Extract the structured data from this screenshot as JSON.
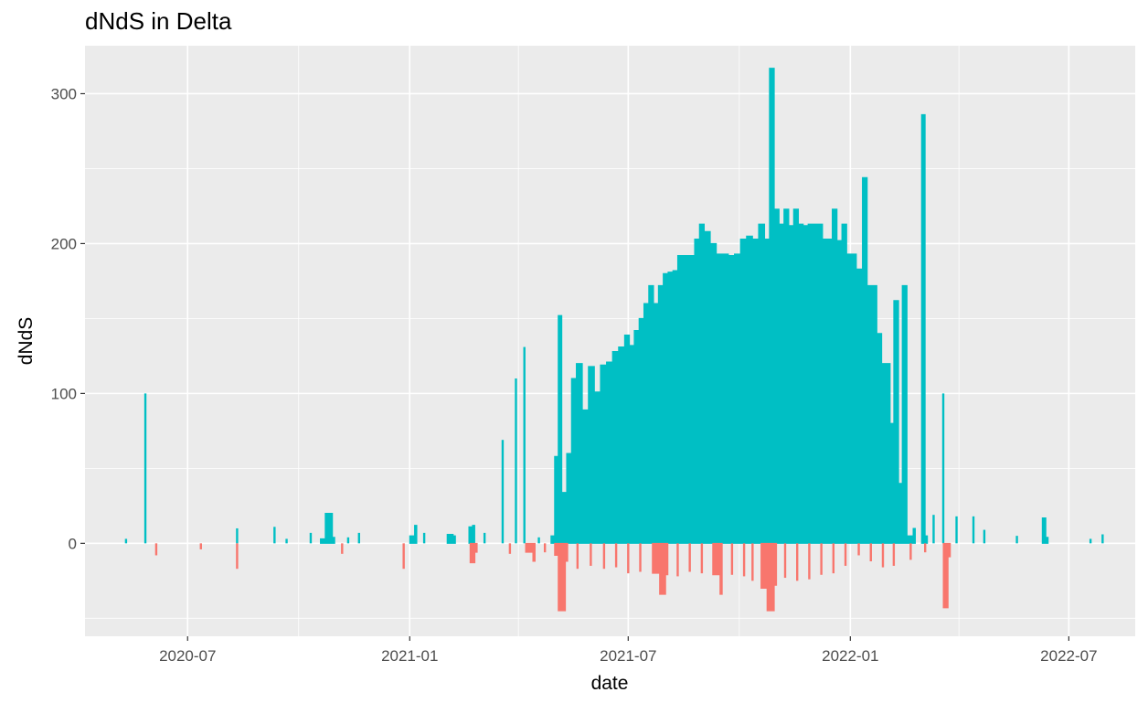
{
  "chart_data": {
    "type": "bar",
    "title": "dNdS in Delta",
    "xlabel": "date",
    "ylabel": "dNdS",
    "x_range": [
      "2020-04-07",
      "2022-08-25"
    ],
    "ylim": [
      -62,
      332
    ],
    "x_ticks": [
      "2020-07-01",
      "2021-01-01",
      "2021-07-01",
      "2022-01-01",
      "2022-07-01"
    ],
    "x_tick_labels": [
      "2020-07",
      "2021-01",
      "2021-07",
      "2022-01",
      "2022-07"
    ],
    "y_ticks": [
      0,
      100,
      200,
      300
    ],
    "y_tick_labels": [
      "0",
      "100",
      "200",
      "300"
    ],
    "grid": true,
    "legend": "none",
    "colors": {
      "positive": "#00BFC4",
      "negative": "#F8766D",
      "panel": "#EBEBEB",
      "grid": "#FFFFFF"
    },
    "series": [
      {
        "sign": "positive",
        "points": [
          [
            "2020-05-11",
            3
          ],
          [
            "2020-05-27",
            100
          ],
          [
            "2020-08-11",
            10
          ],
          [
            "2020-09-11",
            11
          ],
          [
            "2020-09-21",
            3
          ],
          [
            "2020-10-11",
            7
          ],
          [
            "2020-10-19",
            3
          ],
          [
            "2020-10-23",
            20
          ],
          [
            "2020-10-29",
            4
          ],
          [
            "2020-11-11",
            4
          ],
          [
            "2020-11-20",
            7
          ],
          [
            "2021-01-01",
            5
          ],
          [
            "2021-01-05",
            12
          ],
          [
            "2021-01-13",
            7
          ],
          [
            "2021-02-01",
            6
          ],
          [
            "2021-02-06",
            5
          ],
          [
            "2021-02-19",
            11
          ],
          [
            "2021-02-22",
            12
          ],
          [
            "2021-03-04",
            7
          ],
          [
            "2021-03-19",
            69
          ],
          [
            "2021-03-30",
            110
          ],
          [
            "2021-04-06",
            131
          ],
          [
            "2021-04-18",
            4
          ],
          [
            "2021-04-28",
            5
          ],
          [
            "2021-05-01",
            58
          ],
          [
            "2021-05-04",
            152
          ],
          [
            "2021-05-07",
            34
          ],
          [
            "2021-05-11",
            60
          ],
          [
            "2021-05-15",
            110
          ],
          [
            "2021-05-19",
            120
          ],
          [
            "2021-05-24",
            89
          ],
          [
            "2021-05-29",
            118
          ],
          [
            "2021-06-03",
            101
          ],
          [
            "2021-06-08",
            119
          ],
          [
            "2021-06-13",
            121
          ],
          [
            "2021-06-18",
            128
          ],
          [
            "2021-06-23",
            131
          ],
          [
            "2021-06-28",
            139
          ],
          [
            "2021-07-02",
            132
          ],
          [
            "2021-07-06",
            142
          ],
          [
            "2021-07-10",
            150
          ],
          [
            "2021-07-14",
            160
          ],
          [
            "2021-07-18",
            172
          ],
          [
            "2021-07-22",
            160
          ],
          [
            "2021-07-26",
            172
          ],
          [
            "2021-07-30",
            180
          ],
          [
            "2021-08-03",
            181
          ],
          [
            "2021-08-07",
            182
          ],
          [
            "2021-08-11",
            192
          ],
          [
            "2021-08-15",
            192
          ],
          [
            "2021-08-20",
            192
          ],
          [
            "2021-08-25",
            203
          ],
          [
            "2021-08-29",
            213
          ],
          [
            "2021-09-02",
            208
          ],
          [
            "2021-09-07",
            200
          ],
          [
            "2021-09-12",
            193
          ],
          [
            "2021-09-17",
            193
          ],
          [
            "2021-09-22",
            192
          ],
          [
            "2021-09-27",
            193
          ],
          [
            "2021-10-02",
            203
          ],
          [
            "2021-10-07",
            205
          ],
          [
            "2021-10-12",
            203
          ],
          [
            "2021-10-17",
            213
          ],
          [
            "2021-10-22",
            203
          ],
          [
            "2021-10-26",
            317
          ],
          [
            "2021-10-30",
            223
          ],
          [
            "2021-11-03",
            213
          ],
          [
            "2021-11-07",
            223
          ],
          [
            "2021-11-11",
            212
          ],
          [
            "2021-11-15",
            223
          ],
          [
            "2021-11-19",
            213
          ],
          [
            "2021-11-23",
            212
          ],
          [
            "2021-11-27",
            213
          ],
          [
            "2021-12-01",
            213
          ],
          [
            "2021-12-05",
            213
          ],
          [
            "2021-12-09",
            203
          ],
          [
            "2021-12-13",
            203
          ],
          [
            "2021-12-17",
            223
          ],
          [
            "2021-12-21",
            202
          ],
          [
            "2021-12-25",
            213
          ],
          [
            "2021-12-29",
            193
          ],
          [
            "2022-01-02",
            193
          ],
          [
            "2022-01-06",
            183
          ],
          [
            "2022-01-11",
            244
          ],
          [
            "2022-01-15",
            172
          ],
          [
            "2022-01-19",
            172
          ],
          [
            "2022-01-23",
            140
          ],
          [
            "2022-01-27",
            120
          ],
          [
            "2022-01-31",
            120
          ],
          [
            "2022-02-03",
            80
          ],
          [
            "2022-02-06",
            162
          ],
          [
            "2022-02-10",
            40
          ],
          [
            "2022-02-13",
            172
          ],
          [
            "2022-02-17",
            5
          ],
          [
            "2022-02-22",
            10
          ],
          [
            "2022-03-01",
            286
          ],
          [
            "2022-03-04",
            5
          ],
          [
            "2022-03-11",
            19
          ],
          [
            "2022-03-19",
            100
          ],
          [
            "2022-03-30",
            18
          ],
          [
            "2022-04-13",
            18
          ],
          [
            "2022-04-22",
            9
          ],
          [
            "2022-05-19",
            5
          ],
          [
            "2022-06-09",
            17
          ],
          [
            "2022-06-12",
            4
          ],
          [
            "2022-07-19",
            3
          ],
          [
            "2022-07-29",
            6
          ]
        ]
      },
      {
        "sign": "negative",
        "points": [
          [
            "2020-06-05",
            -8
          ],
          [
            "2020-07-12",
            -4
          ],
          [
            "2020-08-11",
            -17
          ],
          [
            "2020-11-06",
            -7
          ],
          [
            "2020-12-27",
            -17
          ],
          [
            "2021-02-20",
            -13
          ],
          [
            "2021-02-24",
            -6
          ],
          [
            "2021-03-25",
            -7
          ],
          [
            "2021-04-07",
            -6
          ],
          [
            "2021-04-13",
            -12
          ],
          [
            "2021-04-23",
            -6
          ],
          [
            "2021-05-01",
            -8
          ],
          [
            "2021-05-04",
            -45
          ],
          [
            "2021-05-10",
            -12
          ],
          [
            "2021-05-20",
            -17
          ],
          [
            "2021-05-31",
            -15
          ],
          [
            "2021-06-11",
            -17
          ],
          [
            "2021-06-21",
            -16
          ],
          [
            "2021-07-01",
            -20
          ],
          [
            "2021-07-11",
            -19
          ],
          [
            "2021-07-21",
            -20
          ],
          [
            "2021-07-27",
            -34
          ],
          [
            "2021-08-01",
            -21
          ],
          [
            "2021-08-11",
            -22
          ],
          [
            "2021-08-21",
            -19
          ],
          [
            "2021-08-31",
            -20
          ],
          [
            "2021-09-09",
            -21
          ],
          [
            "2021-09-15",
            -34
          ],
          [
            "2021-09-25",
            -21
          ],
          [
            "2021-10-05",
            -22
          ],
          [
            "2021-10-12",
            -25
          ],
          [
            "2021-10-19",
            -30
          ],
          [
            "2021-10-24",
            -45
          ],
          [
            "2021-10-30",
            -28
          ],
          [
            "2021-11-08",
            -23
          ],
          [
            "2021-11-18",
            -25
          ],
          [
            "2021-11-28",
            -24
          ],
          [
            "2021-12-08",
            -21
          ],
          [
            "2021-12-18",
            -20
          ],
          [
            "2021-12-28",
            -15
          ],
          [
            "2022-01-08",
            -8
          ],
          [
            "2022-01-18",
            -12
          ],
          [
            "2022-01-28",
            -16
          ],
          [
            "2022-02-06",
            -15
          ],
          [
            "2022-02-20",
            -11
          ],
          [
            "2022-03-04",
            -6
          ],
          [
            "2022-03-19",
            -43
          ],
          [
            "2022-03-23",
            -9
          ]
        ]
      }
    ]
  }
}
